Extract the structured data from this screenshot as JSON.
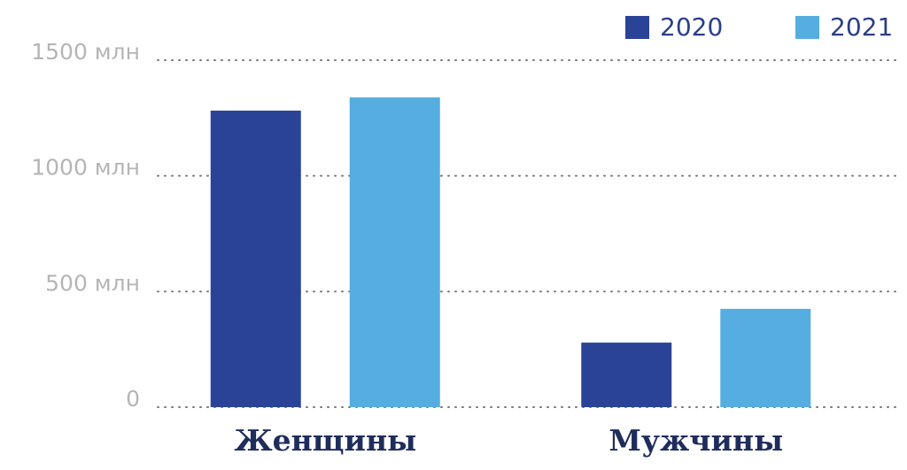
{
  "chart_data": {
    "type": "bar",
    "categories": [
      "Женщины",
      "Мужчины"
    ],
    "series": [
      {
        "name": "2020",
        "color": "#2b4397",
        "values": [
          1282,
          279
        ]
      },
      {
        "name": "2021",
        "color": "#56ade0",
        "values": [
          1339,
          425
        ]
      }
    ],
    "ylim": [
      0,
      1500
    ],
    "yticks": [
      0,
      {
        "value": 500,
        "label": "500 млн"
      },
      {
        "value": 1000,
        "label": "1000 млн"
      },
      {
        "value": 1500,
        "label": "1500 млн"
      }
    ],
    "grid": true,
    "legend": "top-right"
  }
}
